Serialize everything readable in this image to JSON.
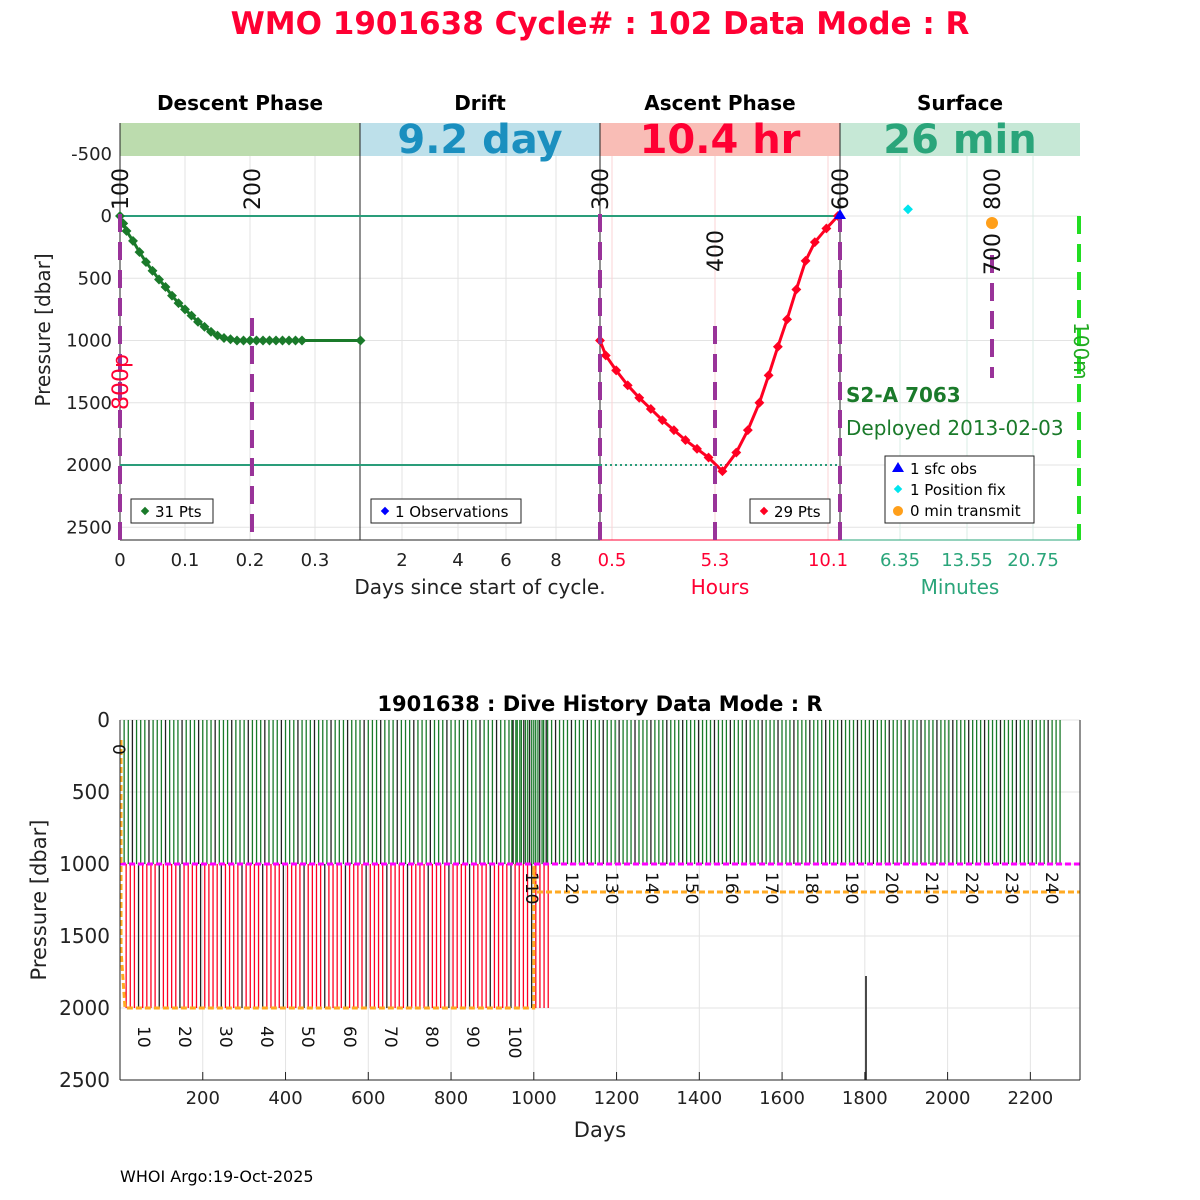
{
  "title": "WMO 1901638   Cycle# : 102   Data Mode : R",
  "footer": "WHOI Argo:19-Oct-2025",
  "colors": {
    "title": "#ff0033",
    "descent": "#1a7a2a",
    "ascent": "#ff0022",
    "drift_band": "#bde0ea",
    "descent_band": "#bcdcae",
    "ascent_band": "#f9bdb6",
    "surface_band": "#c6e8d6",
    "drift_text": "#1a8fbf",
    "surface_text": "#2aa57a",
    "marker": "#993399",
    "sfc": "#0000ff",
    "fix": "#00e5ee",
    "transmit": "#ff9f1a",
    "park": "#ff00ff",
    "depth": "#ffaa22"
  },
  "chart_data": [
    {
      "type": "line",
      "name": "cycle-profile",
      "ylabel": "Pressure [dbar]",
      "ylim": [
        -750,
        2600
      ],
      "yticks": [
        -500,
        0,
        500,
        1000,
        1500,
        2000,
        2500
      ],
      "xlabel": "Days since start of cycle.",
      "park_pressure": 1000,
      "profile_pressure": 2000,
      "phases": [
        {
          "name": "Descent Phase",
          "duration": "",
          "unit_label": "",
          "xticks": [
            "0",
            "0.1",
            "0.2",
            "0.3"
          ],
          "legend": "31 Pts"
        },
        {
          "name": "Drift",
          "duration": "9.2 day",
          "unit_label": "",
          "xticks": [
            "2",
            "4",
            "6",
            "8"
          ],
          "legend": "1 Observations"
        },
        {
          "name": "Ascent Phase",
          "duration": "10.4 hr",
          "unit_label": "Hours",
          "xticks": [
            "0.5",
            "5.3",
            "10.1"
          ],
          "legend": "29 Pts"
        },
        {
          "name": "Surface",
          "duration": "26 min",
          "unit_label": "Minutes",
          "xticks": [
            "6.35",
            "13.55",
            "20.75"
          ],
          "legend": ""
        }
      ],
      "descent": {
        "days": [
          0,
          0.005,
          0.01,
          0.02,
          0.03,
          0.04,
          0.05,
          0.06,
          0.07,
          0.08,
          0.09,
          0.1,
          0.11,
          0.12,
          0.13,
          0.14,
          0.15,
          0.16,
          0.17,
          0.18,
          0.19,
          0.2,
          0.21,
          0.22,
          0.23,
          0.24,
          0.25,
          0.26,
          0.27,
          0.28,
          0.37
        ],
        "pressure": [
          0,
          60,
          120,
          200,
          290,
          370,
          440,
          510,
          570,
          640,
          700,
          750,
          800,
          850,
          890,
          930,
          960,
          980,
          990,
          1000,
          1000,
          1000,
          1000,
          1000,
          1000,
          1000,
          1000,
          1000,
          1000,
          1000,
          1000
        ]
      },
      "ascent": {
        "hours": [
          0,
          0.25,
          0.7,
          1.2,
          1.7,
          2.2,
          2.7,
          3.2,
          3.7,
          4.2,
          4.7,
          5.3,
          5.9,
          6.4,
          6.9,
          7.3,
          7.7,
          8.1,
          8.5,
          8.9,
          9.3,
          9.8,
          10.3
        ],
        "pressure": [
          1000,
          1120,
          1240,
          1360,
          1460,
          1550,
          1640,
          1720,
          1800,
          1870,
          1940,
          2050,
          1900,
          1720,
          1500,
          1280,
          1050,
          830,
          590,
          360,
          210,
          100,
          0
        ]
      },
      "markers": [
        {
          "label": "100",
          "pos": "descent:0"
        },
        {
          "label": "200",
          "pos": "descent:0.203"
        },
        {
          "label": "300",
          "pos": "drift:end"
        },
        {
          "label": "400",
          "pos": "ascent:5.3"
        },
        {
          "label": "600",
          "pos": "ascent:10.4"
        },
        {
          "label": "700",
          "pos": "surface:16.3"
        },
        {
          "label": "800",
          "pos": "surface:16.3"
        }
      ],
      "side_labels": {
        "red": "800p",
        "green": "100m"
      },
      "float_label": "S2-A 7063",
      "deployed": "Deployed 2013-02-03",
      "surface_legend": [
        "1 sfc obs",
        "1 Position fix",
        "0 min transmit"
      ]
    },
    {
      "type": "line",
      "name": "dive-history",
      "title": "1901638 : Dive History      Data Mode : R",
      "xlabel": "Days",
      "ylabel": "Pressure [dbar]",
      "xlim": [
        0,
        2320
      ],
      "ylim": [
        0,
        2500
      ],
      "xticks": [
        200,
        400,
        600,
        800,
        1000,
        1200,
        1400,
        1600,
        1800,
        2000,
        2200
      ],
      "yticks": [
        0,
        500,
        1000,
        1500,
        2000,
        2500
      ],
      "cycle_labels_low": [
        "0",
        "10",
        "20",
        "30",
        "40",
        "50",
        "60",
        "70",
        "80",
        "90",
        "100"
      ],
      "cycle_labels_high": [
        "110",
        "120",
        "130",
        "140",
        "150",
        "160",
        "170",
        "180",
        "190",
        "200",
        "210",
        "220",
        "230",
        "240"
      ],
      "phase1": {
        "cycles": [
          1,
          104
        ],
        "day_per_cycle": 10,
        "profile_pressure": 2000,
        "park_pressure": 1000
      },
      "phase2": {
        "cycles": [
          105,
          243
        ],
        "day_per_cycle": 9.6,
        "profile_pressure": 1200,
        "park_pressure": 1000
      }
    }
  ]
}
